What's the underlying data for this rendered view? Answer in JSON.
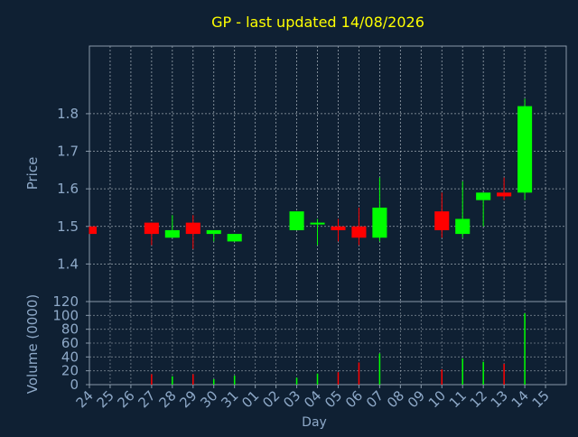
{
  "chart_data": {
    "type": "candlestick",
    "title": "GP - last updated 14/08/2026",
    "xlabel": "Day",
    "days": [
      "24",
      "25",
      "26",
      "27",
      "28",
      "29",
      "30",
      "31",
      "01",
      "02",
      "03",
      "04",
      "05",
      "06",
      "07",
      "08",
      "09",
      "10",
      "11",
      "12",
      "13",
      "14",
      "15"
    ],
    "price_panel": {
      "ylabel": "Price",
      "ylim": [
        1.3,
        1.98
      ],
      "yticks": [
        "1.4",
        "1.5",
        "1.6",
        "1.7",
        "1.8"
      ],
      "grid": true
    },
    "volume_panel": {
      "ylabel": "Volume (0000)",
      "ylim": [
        0,
        120
      ],
      "yticks": [
        "0",
        "20",
        "40",
        "60",
        "80",
        "100",
        "120"
      ],
      "grid": true
    },
    "candles": [
      {
        "day": "24",
        "open": 1.5,
        "high": 1.5,
        "low": 1.48,
        "close": 1.48,
        "volume": 0
      },
      {
        "day": "27",
        "open": 1.51,
        "high": 1.51,
        "low": 1.45,
        "close": 1.48,
        "volume": 15
      },
      {
        "day": "28",
        "open": 1.47,
        "high": 1.53,
        "low": 1.47,
        "close": 1.49,
        "volume": 12
      },
      {
        "day": "29",
        "open": 1.51,
        "high": 1.53,
        "low": 1.44,
        "close": 1.48,
        "volume": 15
      },
      {
        "day": "30",
        "open": 1.48,
        "high": 1.49,
        "low": 1.46,
        "close": 1.49,
        "volume": 8
      },
      {
        "day": "31",
        "open": 1.46,
        "high": 1.48,
        "low": 1.46,
        "close": 1.48,
        "volume": 13
      },
      {
        "day": "03",
        "open": 1.49,
        "high": 1.54,
        "low": 1.49,
        "close": 1.54,
        "volume": 10
      },
      {
        "day": "04",
        "open": 1.51,
        "high": 1.52,
        "low": 1.45,
        "close": 1.51,
        "volume": 16
      },
      {
        "day": "05",
        "open": 1.5,
        "high": 1.52,
        "low": 1.46,
        "close": 1.49,
        "volume": 18
      },
      {
        "day": "06",
        "open": 1.5,
        "high": 1.55,
        "low": 1.45,
        "close": 1.47,
        "volume": 32
      },
      {
        "day": "07",
        "open": 1.47,
        "high": 1.63,
        "low": 1.46,
        "close": 1.55,
        "volume": 45
      },
      {
        "day": "10",
        "open": 1.54,
        "high": 1.59,
        "low": 1.47,
        "close": 1.49,
        "volume": 22
      },
      {
        "day": "11",
        "open": 1.48,
        "high": 1.62,
        "low": 1.47,
        "close": 1.52,
        "volume": 38
      },
      {
        "day": "12",
        "open": 1.57,
        "high": 1.59,
        "low": 1.5,
        "close": 1.59,
        "volume": 33
      },
      {
        "day": "13",
        "open": 1.59,
        "high": 1.63,
        "low": 1.57,
        "close": 1.58,
        "volume": 30
      },
      {
        "day": "14",
        "open": 1.59,
        "high": 1.84,
        "low": 1.57,
        "close": 1.82,
        "volume": 103
      }
    ],
    "colors": {
      "up": "#00ff00",
      "down": "#ff0000",
      "background": "#0f2033",
      "plot_background": "#0f2033",
      "axis": "#8899aa",
      "grid": "#c8d0d8",
      "label_text": "#8ea9c8",
      "title_text": "#ffff00"
    }
  }
}
